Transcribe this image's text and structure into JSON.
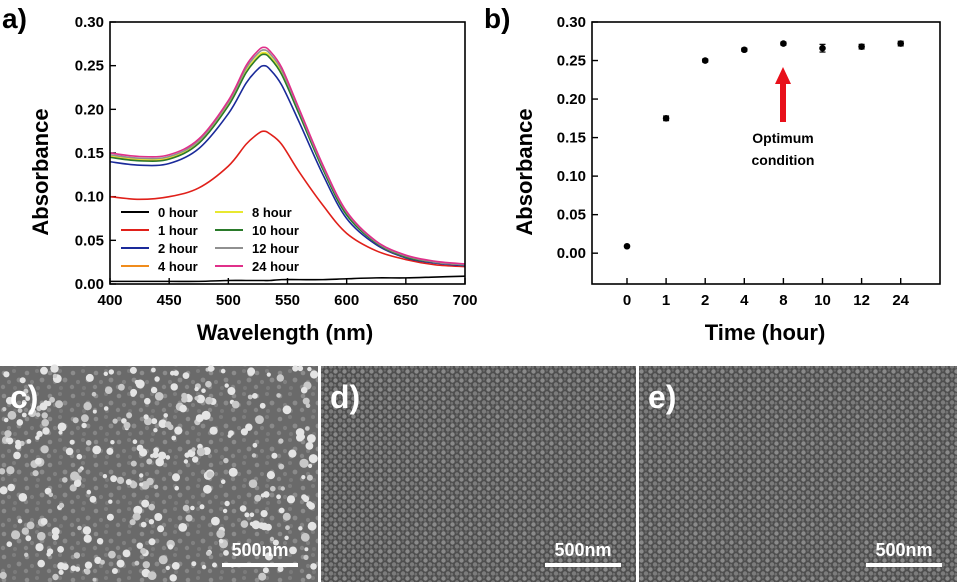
{
  "chart_data": [
    {
      "panel": "a)",
      "type": "line",
      "xlabel": "Wavelength (nm)",
      "ylabel": "Absorbance",
      "xlim": [
        400,
        700
      ],
      "ylim": [
        0.0,
        0.3
      ],
      "xticks": [
        400,
        450,
        500,
        550,
        600,
        650,
        700
      ],
      "yticks": [
        "0.00",
        "0.05",
        "0.10",
        "0.15",
        "0.20",
        "0.25",
        "0.30"
      ],
      "x": [
        400,
        425,
        450,
        475,
        500,
        515,
        525,
        530,
        535,
        545,
        560,
        580,
        600,
        625,
        650,
        675,
        700
      ],
      "series": [
        {
          "name": "0 hour",
          "color": "#000000",
          "values": [
            0.003,
            0.003,
            0.003,
            0.003,
            0.004,
            0.004,
            0.004,
            0.004,
            0.004,
            0.005,
            0.005,
            0.005,
            0.006,
            0.007,
            0.007,
            0.008,
            0.009
          ]
        },
        {
          "name": "1 hour",
          "color": "#e0201a",
          "values": [
            0.1,
            0.097,
            0.1,
            0.11,
            0.135,
            0.16,
            0.172,
            0.175,
            0.172,
            0.16,
            0.128,
            0.09,
            0.058,
            0.038,
            0.028,
            0.022,
            0.02
          ]
        },
        {
          "name": "2 hour",
          "color": "#1a2a9a",
          "values": [
            0.14,
            0.136,
            0.138,
            0.155,
            0.195,
            0.23,
            0.246,
            0.25,
            0.246,
            0.228,
            0.185,
            0.125,
            0.075,
            0.045,
            0.03,
            0.024,
            0.021
          ]
        },
        {
          "name": "4 hour",
          "color": "#f08c1c",
          "values": [
            0.146,
            0.142,
            0.144,
            0.162,
            0.205,
            0.243,
            0.26,
            0.264,
            0.26,
            0.241,
            0.195,
            0.132,
            0.08,
            0.047,
            0.031,
            0.025,
            0.022
          ]
        },
        {
          "name": "8 hour",
          "color": "#e8e830",
          "values": [
            0.147,
            0.143,
            0.145,
            0.163,
            0.206,
            0.244,
            0.261,
            0.265,
            0.261,
            0.242,
            0.196,
            0.133,
            0.081,
            0.048,
            0.032,
            0.025,
            0.022
          ]
        },
        {
          "name": "10 hour",
          "color": "#2a7a2a",
          "values": [
            0.145,
            0.141,
            0.143,
            0.161,
            0.204,
            0.242,
            0.259,
            0.263,
            0.259,
            0.24,
            0.194,
            0.131,
            0.079,
            0.047,
            0.031,
            0.025,
            0.022
          ]
        },
        {
          "name": "12 hour",
          "color": "#909090",
          "values": [
            0.148,
            0.144,
            0.146,
            0.164,
            0.208,
            0.247,
            0.264,
            0.268,
            0.264,
            0.245,
            0.198,
            0.134,
            0.082,
            0.048,
            0.032,
            0.025,
            0.022
          ]
        },
        {
          "name": "24 hour",
          "color": "#e0308a",
          "values": [
            0.15,
            0.146,
            0.148,
            0.166,
            0.21,
            0.25,
            0.267,
            0.271,
            0.267,
            0.248,
            0.2,
            0.136,
            0.083,
            0.049,
            0.033,
            0.026,
            0.023
          ]
        }
      ]
    },
    {
      "panel": "b)",
      "type": "scatter",
      "xlabel": "Time (hour)",
      "ylabel": "Absorbance",
      "ylim": [
        -0.04,
        0.3
      ],
      "yticks": [
        "0.00",
        "0.05",
        "0.10",
        "0.15",
        "0.20",
        "0.25",
        "0.30"
      ],
      "categories": [
        "0",
        "1",
        "2",
        "4",
        "8",
        "10",
        "12",
        "24"
      ],
      "values": [
        0.009,
        0.175,
        0.25,
        0.264,
        0.272,
        0.266,
        0.268,
        0.272
      ],
      "errors": [
        0.001,
        0.003,
        0.002,
        0.002,
        0.002,
        0.005,
        0.003,
        0.003
      ],
      "annotation": "Optimum condition",
      "annotation_lines": [
        "Optimum",
        "condition"
      ],
      "annotation_at": "8",
      "arrow_color": "#e8101a"
    }
  ],
  "sem_panels": [
    {
      "label": "c)",
      "scale_bar": "500nm"
    },
    {
      "label": "d)",
      "scale_bar": "500nm"
    },
    {
      "label": "e)",
      "scale_bar": "500nm"
    }
  ]
}
